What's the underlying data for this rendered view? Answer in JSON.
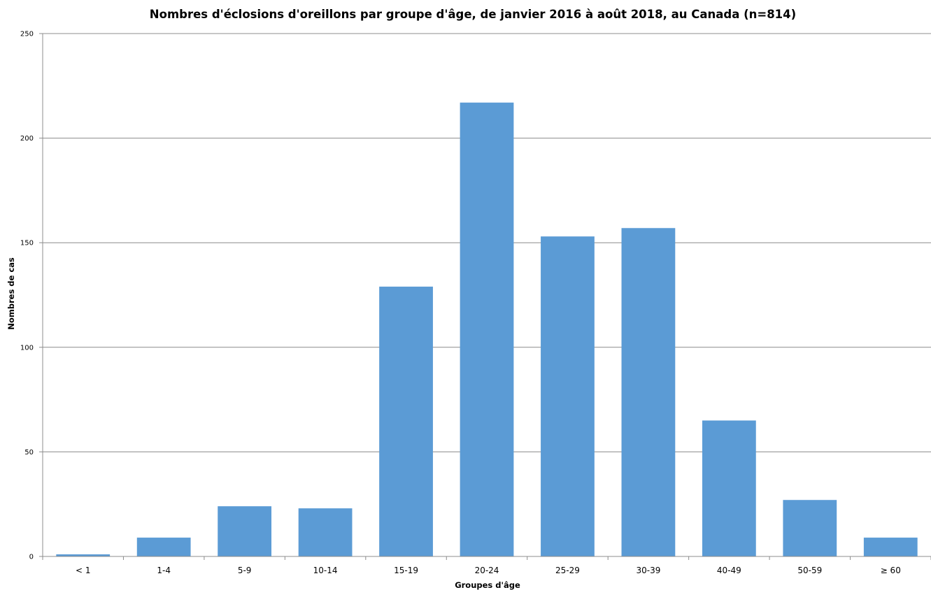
{
  "chart_data": {
    "type": "bar",
    "title": "Nombres d'éclosions d'oreillons par groupe d'âge, de janvier 2016 à août 2018, au Canada (n=814)",
    "xlabel": "Groupes  d'âge",
    "ylabel": "Nombres de cas",
    "categories": [
      "< 1",
      "1-4",
      "5-9",
      "10-14",
      "15-19",
      "20-24",
      "25-29",
      "30-39",
      "40-49",
      "50-59",
      "≥ 60"
    ],
    "values": [
      1,
      9,
      24,
      23,
      129,
      217,
      153,
      157,
      65,
      27,
      9
    ],
    "ylim": [
      0,
      250
    ],
    "yticks": [
      0,
      50,
      100,
      150,
      200,
      250
    ],
    "grid": true,
    "legend": "none",
    "bar_color": "#5b9bd5",
    "grid_color": "#8c8c8c",
    "axis_color": "#8c8c8c"
  }
}
